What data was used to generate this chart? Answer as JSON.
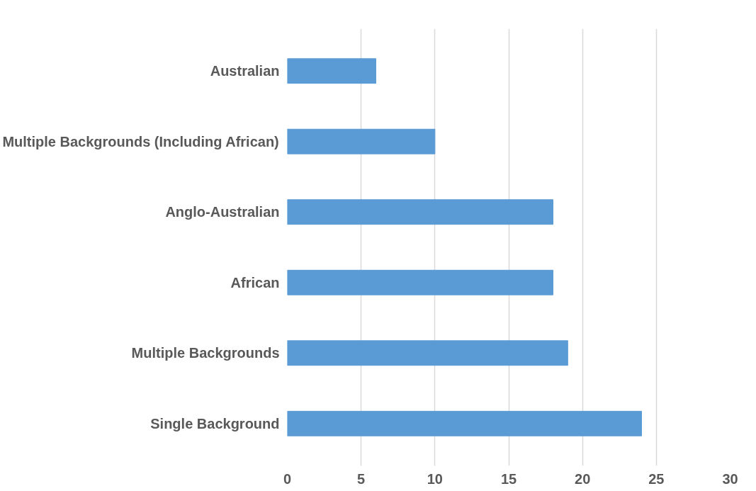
{
  "chart_data": {
    "type": "bar",
    "orientation": "horizontal",
    "categories": [
      "Australian",
      "Multiple Backgrounds (Including African)",
      "Anglo-Australian",
      "African",
      "Multiple Backgrounds",
      "Single Background"
    ],
    "values": [
      6,
      10,
      18,
      18,
      19,
      24
    ],
    "color": "#5b9bd5",
    "xlim": [
      0,
      30
    ],
    "xticks": [
      0,
      5,
      10,
      15,
      20,
      25,
      30
    ],
    "grid": "x"
  }
}
